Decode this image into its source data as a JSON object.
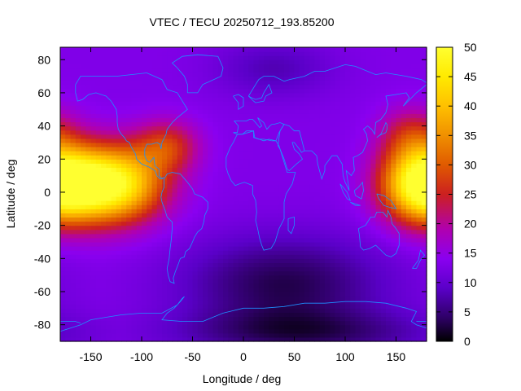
{
  "chart_data": {
    "type": "heatmap",
    "title": "VTEC / TECU 20250712_193.85200",
    "xlabel": "Longitude / deg",
    "ylabel": "Latitude / deg",
    "xlim": [
      -180,
      180
    ],
    "ylim": [
      -90,
      87.5
    ],
    "x_ticks": [
      -150,
      -100,
      -50,
      0,
      50,
      100,
      150
    ],
    "y_ticks": [
      -80,
      -60,
      -40,
      -20,
      0,
      20,
      40,
      60,
      80
    ],
    "colorbar": {
      "range": [
        0,
        50
      ],
      "ticks": [
        0,
        5,
        10,
        15,
        20,
        25,
        30,
        35,
        40,
        45,
        50
      ],
      "palette": [
        "#000000",
        "#2e0066",
        "#5a00c8",
        "#8a00f0",
        "#b000b0",
        "#cc2020",
        "#e05a00",
        "#f09000",
        "#ffc000",
        "#ffea00",
        "#ffff30"
      ],
      "palette_values": [
        0,
        4,
        9,
        14,
        19,
        25,
        30,
        35,
        40,
        45,
        50
      ]
    },
    "grid": false,
    "legend": "colorbar-right",
    "coastline_color": "#1e90ff",
    "value_model": {
      "background": 13,
      "anomalies": [
        {
          "lon": -130,
          "lat": 5,
          "peak": 37,
          "lon_width": 35,
          "lat_width": 16
        },
        {
          "lon": -75,
          "lat": 28,
          "peak": 13,
          "lon_width": 22,
          "lat_width": 11
        },
        {
          "lon": 175,
          "lat": 5,
          "peak": 36,
          "lon_width": 28,
          "lat_width": 16
        },
        {
          "lon": 165,
          "lat": 35,
          "peak": 10,
          "lon_width": 22,
          "lat_width": 12
        },
        {
          "lon": 40,
          "lat": -55,
          "peak": -10,
          "lon_width": 70,
          "lat_width": 20
        },
        {
          "lon": 60,
          "lat": -85,
          "peak": -8,
          "lon_width": 90,
          "lat_width": 10
        },
        {
          "lon": 30,
          "lat": 75,
          "peak": -5,
          "lon_width": 40,
          "lat_width": 12
        }
      ]
    }
  }
}
